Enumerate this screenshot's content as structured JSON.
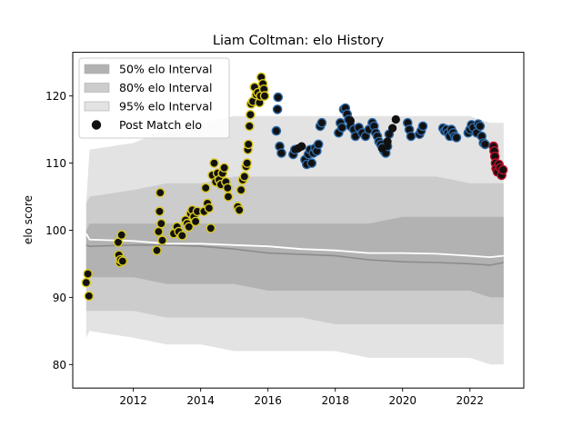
{
  "chart_data": {
    "type": "scatter",
    "title": "Liam Coltman: elo History",
    "xlabel": "",
    "ylabel": "elo score",
    "xlim": [
      2010.2,
      2023.6
    ],
    "ylim": [
      76.5,
      126.5
    ],
    "x_ticks": [
      2012,
      2014,
      2016,
      2018,
      2020,
      2022
    ],
    "y_ticks": [
      80,
      90,
      100,
      110,
      120
    ],
    "legend_position": "top-left",
    "colors": {
      "band50": "#b2b2b2",
      "band80": "#cccccc",
      "band95": "#e3e3e3",
      "median": "#8c8c8c",
      "mean": "#ffffff",
      "point_fill": "#111111",
      "point_edge_early": "#d9c81e",
      "point_edge_late": "#2e6aa8",
      "point_edge_recent": "#c0102a"
    },
    "legend": [
      {
        "label": "50% elo Interval",
        "kind": "band50"
      },
      {
        "label": "80% elo Interval",
        "kind": "band80"
      },
      {
        "label": "95% elo Interval",
        "kind": "band95"
      },
      {
        "label": "Post Match elo",
        "kind": "point"
      }
    ],
    "bands": {
      "x": [
        2010.6,
        2010.7,
        2012.0,
        2013.0,
        2014.0,
        2015.0,
        2016.0,
        2017.0,
        2018.0,
        2019.0,
        2020.0,
        2021.0,
        2022.0,
        2022.6,
        2023.0
      ],
      "p95_lo": [
        84,
        85,
        84,
        83,
        83,
        82,
        82,
        82,
        82,
        81,
        81,
        81,
        81,
        80,
        80
      ],
      "p95_hi": [
        104,
        112,
        113,
        115,
        116,
        117,
        117,
        117,
        117,
        117,
        117,
        117,
        117,
        116,
        116
      ],
      "p80_lo": [
        88,
        88,
        88,
        87,
        87,
        87,
        87,
        87,
        86,
        86,
        86,
        86,
        86,
        86,
        86
      ],
      "p80_hi": [
        104,
        105,
        106,
        107,
        107,
        108,
        108,
        108,
        108,
        108,
        108,
        108,
        107,
        107,
        107
      ],
      "p50_lo": [
        93,
        93,
        93,
        92,
        92,
        92,
        91,
        91,
        91,
        91,
        91,
        91,
        91,
        90,
        90
      ],
      "p50_hi": [
        100,
        101,
        101,
        101,
        101,
        101,
        101,
        101,
        101,
        101,
        102,
        102,
        102,
        102,
        102
      ],
      "median": [
        97.8,
        97.6,
        97.8,
        97.8,
        97.6,
        97.2,
        96.6,
        96.4,
        96.2,
        95.6,
        95.3,
        95.2,
        95.0,
        94.8,
        95.2
      ],
      "mean": [
        99.5,
        98.6,
        98.4,
        98.0,
        98.0,
        97.8,
        97.6,
        97.2,
        97.0,
        96.6,
        96.6,
        96.5,
        96.2,
        96.0,
        96.2
      ]
    },
    "series": [
      {
        "points": [
          [
            2010.6,
            92.2
          ],
          [
            2010.65,
            93.5
          ],
          [
            2010.68,
            90.2
          ],
          [
            2011.55,
            98.2
          ],
          [
            2011.57,
            96.3
          ],
          [
            2011.6,
            95.2
          ],
          [
            2011.62,
            95.6
          ],
          [
            2011.65,
            99.3
          ],
          [
            2011.68,
            95.4
          ],
          [
            2012.7,
            97.0
          ],
          [
            2012.75,
            99.8
          ],
          [
            2012.78,
            102.8
          ],
          [
            2012.8,
            105.6
          ],
          [
            2012.83,
            101.0
          ],
          [
            2012.86,
            98.5
          ],
          [
            2013.2,
            99.5
          ],
          [
            2013.3,
            100.5
          ],
          [
            2013.35,
            99.8
          ],
          [
            2013.45,
            99.2
          ],
          [
            2013.55,
            101.5
          ],
          [
            2013.6,
            101.0
          ],
          [
            2013.65,
            100.5
          ],
          [
            2013.7,
            102.5
          ],
          [
            2013.75,
            103.0
          ],
          [
            2013.8,
            102.0
          ],
          [
            2013.85,
            101.3
          ],
          [
            2013.9,
            102.8
          ],
          [
            2014.1,
            102.8
          ],
          [
            2014.15,
            106.3
          ],
          [
            2014.2,
            104.0
          ],
          [
            2014.25,
            103.3
          ],
          [
            2014.3,
            100.3
          ],
          [
            2014.35,
            108.2
          ],
          [
            2014.4,
            110.0
          ],
          [
            2014.45,
            107.2
          ],
          [
            2014.5,
            108.5
          ],
          [
            2014.55,
            107.5
          ],
          [
            2014.6,
            106.8
          ],
          [
            2014.65,
            108.5
          ],
          [
            2014.7,
            109.3
          ],
          [
            2014.75,
            107.2
          ],
          [
            2014.8,
            106.3
          ],
          [
            2014.82,
            105.0
          ],
          [
            2015.1,
            103.5
          ],
          [
            2015.15,
            103.0
          ],
          [
            2015.2,
            106.0
          ],
          [
            2015.25,
            107.5
          ],
          [
            2015.3,
            108.0
          ],
          [
            2015.35,
            109.5
          ],
          [
            2015.38,
            110.0
          ],
          [
            2015.4,
            112.0
          ],
          [
            2015.42,
            112.8
          ],
          [
            2015.45,
            115.5
          ],
          [
            2015.48,
            117.2
          ],
          [
            2015.5,
            118.8
          ],
          [
            2015.55,
            119.2
          ],
          [
            2015.6,
            121.3
          ],
          [
            2015.65,
            120.2
          ],
          [
            2015.7,
            120.5
          ],
          [
            2015.75,
            119.0
          ],
          [
            2015.78,
            120.0
          ],
          [
            2015.8,
            122.8
          ],
          [
            2015.85,
            121.8
          ],
          [
            2015.88,
            121.0
          ],
          [
            2015.9,
            120.0
          ],
          [
            2016.25,
            114.8
          ],
          [
            2016.28,
            118.0
          ],
          [
            2016.3,
            119.8
          ],
          [
            2016.35,
            112.5
          ],
          [
            2016.4,
            111.5
          ],
          [
            2016.75,
            111.3
          ],
          [
            2016.8,
            112.0
          ],
          [
            2017.1,
            110.5
          ],
          [
            2017.15,
            109.8
          ],
          [
            2017.2,
            111.3
          ],
          [
            2017.25,
            112.0
          ],
          [
            2017.3,
            110.0
          ],
          [
            2017.35,
            111.5
          ],
          [
            2017.4,
            112.2
          ],
          [
            2017.45,
            111.8
          ],
          [
            2017.5,
            112.8
          ],
          [
            2017.55,
            115.5
          ],
          [
            2017.6,
            116.0
          ],
          [
            2018.1,
            114.5
          ],
          [
            2018.15,
            116.0
          ],
          [
            2018.2,
            115.3
          ],
          [
            2018.25,
            118.0
          ],
          [
            2018.3,
            118.2
          ],
          [
            2018.35,
            117.3
          ],
          [
            2018.4,
            116.5
          ],
          [
            2018.45,
            115.5
          ],
          [
            2018.55,
            115.0
          ],
          [
            2018.6,
            114.0
          ],
          [
            2018.7,
            115.3
          ],
          [
            2018.8,
            114.5
          ],
          [
            2018.9,
            114.0
          ],
          [
            2019.0,
            115.0
          ],
          [
            2019.1,
            116.0
          ],
          [
            2019.15,
            115.5
          ],
          [
            2019.2,
            114.5
          ],
          [
            2019.25,
            114.0
          ],
          [
            2019.3,
            113.2
          ],
          [
            2019.35,
            112.8
          ],
          [
            2019.4,
            112.3
          ],
          [
            2019.45,
            111.8
          ],
          [
            2019.5,
            111.5
          ],
          [
            2019.55,
            112.5
          ],
          [
            2019.6,
            114.3
          ],
          [
            2020.15,
            116.0
          ],
          [
            2020.2,
            115.0
          ],
          [
            2020.25,
            114.0
          ],
          [
            2020.5,
            114.3
          ],
          [
            2020.55,
            114.8
          ],
          [
            2020.6,
            115.5
          ],
          [
            2021.2,
            115.2
          ],
          [
            2021.25,
            114.8
          ],
          [
            2021.3,
            115.0
          ],
          [
            2021.35,
            114.5
          ],
          [
            2021.4,
            114.0
          ],
          [
            2021.45,
            115.0
          ],
          [
            2021.5,
            114.5
          ],
          [
            2021.55,
            114.0
          ],
          [
            2021.6,
            113.8
          ],
          [
            2021.95,
            114.5
          ],
          [
            2022.0,
            115.0
          ],
          [
            2022.05,
            115.7
          ],
          [
            2022.1,
            115.3
          ],
          [
            2022.2,
            114.5
          ],
          [
            2022.25,
            115.8
          ],
          [
            2022.3,
            115.5
          ],
          [
            2022.35,
            114.0
          ],
          [
            2022.4,
            113.0
          ],
          [
            2022.45,
            112.8
          ]
        ]
      },
      {
        "edge": "recent",
        "points": [
          [
            2022.7,
            112.5
          ],
          [
            2022.72,
            111.8
          ],
          [
            2022.74,
            111.0
          ],
          [
            2022.76,
            110.0
          ],
          [
            2022.78,
            109.2
          ],
          [
            2022.82,
            108.7
          ],
          [
            2022.86,
            109.8
          ],
          [
            2022.9,
            109.3
          ],
          [
            2022.94,
            108.2
          ],
          [
            2022.98,
            109.0
          ]
        ]
      },
      {
        "edge": "none",
        "points": [
          [
            2016.9,
            112.2
          ],
          [
            2017.0,
            112.5
          ],
          [
            2018.45,
            116.3
          ],
          [
            2019.4,
            112.2
          ],
          [
            2019.55,
            113.2
          ],
          [
            2019.7,
            115.2
          ],
          [
            2019.8,
            116.5
          ]
        ]
      }
    ]
  }
}
